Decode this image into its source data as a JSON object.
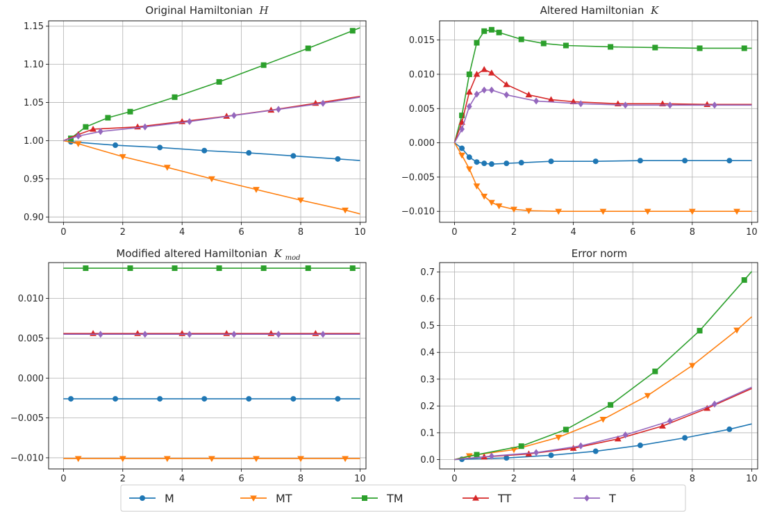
{
  "chart_data": [
    {
      "type": "line",
      "title": "Original Hamiltonian",
      "title_symbol": "H",
      "xlim": [
        -0.5,
        10.2
      ],
      "ylim": [
        0.893,
        1.157
      ],
      "xticks": [
        0,
        2,
        4,
        6,
        8,
        10
      ],
      "yticks": [
        0.9,
        0.95,
        1.0,
        1.05,
        1.1,
        1.15
      ],
      "ytick_labels": [
        "0.90",
        "0.95",
        "1.00",
        "1.05",
        "1.10",
        "1.15"
      ],
      "grid": true,
      "series": [
        {
          "name": "M",
          "x": [
            0,
            0.25,
            1.75,
            3.25,
            4.75,
            6.25,
            7.75,
            9.25,
            10
          ],
          "y": [
            1.0,
            0.9985,
            0.994,
            0.991,
            0.987,
            0.984,
            0.98,
            0.976,
            0.974
          ]
        },
        {
          "name": "MT",
          "x": [
            0,
            0.5,
            2,
            3.5,
            5,
            6.5,
            8,
            9.5,
            10
          ],
          "y": [
            1.0,
            0.996,
            0.979,
            0.965,
            0.95,
            0.936,
            0.922,
            0.909,
            0.904
          ]
        },
        {
          "name": "TM",
          "x": [
            0,
            0.25,
            0.75,
            1.5,
            2.25,
            3.75,
            5.25,
            6.75,
            8.25,
            9.75,
            10
          ],
          "y": [
            1.0,
            1.003,
            1.018,
            1.03,
            1.038,
            1.057,
            1.077,
            1.099,
            1.121,
            1.144,
            1.148
          ]
        },
        {
          "name": "TT",
          "x": [
            0,
            0.5,
            1,
            2.5,
            4,
            5.5,
            7,
            8.5,
            10
          ],
          "y": [
            1.0,
            1.008,
            1.015,
            1.018,
            1.025,
            1.032,
            1.04,
            1.049,
            1.058
          ]
        },
        {
          "name": "T",
          "x": [
            0,
            0.5,
            1.25,
            2.75,
            4.25,
            5.75,
            7.25,
            8.75,
            10
          ],
          "y": [
            1.0,
            1.006,
            1.012,
            1.018,
            1.025,
            1.033,
            1.041,
            1.049,
            1.057
          ]
        }
      ]
    },
    {
      "type": "line",
      "title": "Altered Hamiltonian",
      "title_symbol": "K",
      "xlim": [
        -0.5,
        10.2
      ],
      "ylim": [
        -0.0116,
        0.0178
      ],
      "xticks": [
        0,
        2,
        4,
        6,
        8,
        10
      ],
      "yticks": [
        -0.01,
        -0.005,
        0.0,
        0.005,
        0.01,
        0.015
      ],
      "ytick_labels": [
        "−0.010",
        "−0.005",
        "0.000",
        "0.005",
        "0.010",
        "0.015"
      ],
      "grid": true,
      "series": [
        {
          "name": "M",
          "x": [
            0,
            0.25,
            0.5,
            0.75,
            1,
            1.25,
            1.75,
            2.25,
            3.25,
            4.75,
            6.25,
            7.75,
            9.25,
            10
          ],
          "y": [
            0,
            -0.0008,
            -0.0021,
            -0.0028,
            -0.003,
            -0.0031,
            -0.003,
            -0.0029,
            -0.0027,
            -0.0027,
            -0.0026,
            -0.0026,
            -0.0026,
            -0.0026
          ]
        },
        {
          "name": "MT",
          "x": [
            0,
            0.25,
            0.5,
            0.75,
            1,
            1.25,
            1.5,
            2,
            2.5,
            3.5,
            5,
            6.5,
            8,
            9.5,
            10
          ],
          "y": [
            0,
            -0.0018,
            -0.0038,
            -0.0063,
            -0.0078,
            -0.0087,
            -0.0092,
            -0.0097,
            -0.0099,
            -0.01,
            -0.01,
            -0.01,
            -0.01,
            -0.01,
            -0.01
          ]
        },
        {
          "name": "TM",
          "x": [
            0,
            0.25,
            0.5,
            0.75,
            1,
            1.25,
            1.5,
            2.25,
            3,
            3.75,
            5.25,
            6.75,
            8.25,
            9.75,
            10
          ],
          "y": [
            0,
            0.004,
            0.01,
            0.0146,
            0.0163,
            0.0165,
            0.0161,
            0.0151,
            0.0145,
            0.0142,
            0.014,
            0.0139,
            0.0138,
            0.0138,
            0.0138
          ]
        },
        {
          "name": "TT",
          "x": [
            0,
            0.25,
            0.5,
            0.75,
            1,
            1.25,
            1.75,
            2.5,
            3.25,
            4,
            5.5,
            7,
            8.5,
            10
          ],
          "y": [
            0,
            0.003,
            0.0074,
            0.01,
            0.0107,
            0.0102,
            0.0085,
            0.007,
            0.0063,
            0.006,
            0.0057,
            0.0057,
            0.0056,
            0.0056
          ]
        },
        {
          "name": "T",
          "x": [
            0,
            0.25,
            0.5,
            0.75,
            1,
            1.25,
            1.75,
            2.75,
            4.25,
            5.75,
            7.25,
            8.75,
            10
          ],
          "y": [
            0,
            0.002,
            0.0053,
            0.0071,
            0.0077,
            0.0077,
            0.007,
            0.0061,
            0.0057,
            0.0055,
            0.0055,
            0.0055,
            0.0055
          ]
        }
      ]
    },
    {
      "type": "line",
      "title": "Modified altered Hamiltonian",
      "title_symbol": "K",
      "title_subscript": "mod",
      "xlim": [
        -0.5,
        10.2
      ],
      "ylim": [
        -0.0114,
        0.0145
      ],
      "xticks": [
        0,
        2,
        4,
        6,
        8,
        10
      ],
      "yticks": [
        -0.01,
        -0.005,
        0.0,
        0.005,
        0.01
      ],
      "ytick_labels": [
        "−0.010",
        "−0.005",
        "0.000",
        "0.005",
        "0.010"
      ],
      "grid": true,
      "series": [
        {
          "name": "M",
          "x": [
            0,
            0.25,
            1.75,
            3.25,
            4.75,
            6.25,
            7.75,
            9.25,
            10
          ],
          "y": [
            -0.0026,
            -0.0026,
            -0.0026,
            -0.0026,
            -0.0026,
            -0.0026,
            -0.0026,
            -0.0026,
            -0.0026
          ]
        },
        {
          "name": "MT",
          "x": [
            0,
            0.5,
            2,
            3.5,
            5,
            6.5,
            8,
            9.5,
            10
          ],
          "y": [
            -0.0101,
            -0.0101,
            -0.0101,
            -0.0101,
            -0.0101,
            -0.0101,
            -0.0101,
            -0.0101,
            -0.0101
          ]
        },
        {
          "name": "TM",
          "x": [
            0,
            0.75,
            2.25,
            3.75,
            5.25,
            6.75,
            8.25,
            9.75,
            10
          ],
          "y": [
            0.0138,
            0.0138,
            0.0138,
            0.0138,
            0.0138,
            0.0138,
            0.0138,
            0.0138,
            0.0138
          ]
        },
        {
          "name": "TT",
          "x": [
            0,
            1,
            2.5,
            4,
            5.5,
            7,
            8.5,
            10
          ],
          "y": [
            0.0056,
            0.0056,
            0.0056,
            0.0056,
            0.0056,
            0.0056,
            0.0056,
            0.0056
          ]
        },
        {
          "name": "T",
          "x": [
            0,
            1.25,
            2.75,
            4.25,
            5.75,
            7.25,
            8.75,
            10
          ],
          "y": [
            0.0055,
            0.0055,
            0.0055,
            0.0055,
            0.0055,
            0.0055,
            0.0055,
            0.0055
          ]
        }
      ]
    },
    {
      "type": "line",
      "title": "Error norm",
      "xlim": [
        -0.5,
        10.2
      ],
      "ylim": [
        -0.035,
        0.735
      ],
      "xticks": [
        0,
        2,
        4,
        6,
        8,
        10
      ],
      "yticks": [
        0.0,
        0.1,
        0.2,
        0.3,
        0.4,
        0.5,
        0.6,
        0.7
      ],
      "ytick_labels": [
        "0.0",
        "0.1",
        "0.2",
        "0.3",
        "0.4",
        "0.5",
        "0.6",
        "0.7"
      ],
      "grid": true,
      "series": [
        {
          "name": "M",
          "x": [
            0,
            0.25,
            1.75,
            3.25,
            4.75,
            6.25,
            7.75,
            9.25,
            10
          ],
          "y": [
            0,
            0.001,
            0.006,
            0.016,
            0.031,
            0.053,
            0.081,
            0.113,
            0.133
          ]
        },
        {
          "name": "MT",
          "x": [
            0,
            0.5,
            2,
            3.5,
            5,
            6.5,
            8,
            9.5,
            10
          ],
          "y": [
            0,
            0.014,
            0.037,
            0.083,
            0.15,
            0.239,
            0.351,
            0.483,
            0.533
          ]
        },
        {
          "name": "TM",
          "x": [
            0,
            0.75,
            2.25,
            3.75,
            5.25,
            6.75,
            8.25,
            9.75,
            10
          ],
          "y": [
            0,
            0.018,
            0.05,
            0.112,
            0.204,
            0.329,
            0.481,
            0.67,
            0.702
          ]
        },
        {
          "name": "TT",
          "x": [
            0,
            1,
            2.5,
            4,
            5.5,
            7,
            8.5,
            10
          ],
          "y": [
            0,
            0.01,
            0.021,
            0.042,
            0.077,
            0.125,
            0.191,
            0.265
          ]
        },
        {
          "name": "T",
          "x": [
            0,
            1.25,
            2.75,
            4.25,
            5.75,
            7.25,
            8.75,
            10
          ],
          "y": [
            0,
            0.013,
            0.026,
            0.051,
            0.092,
            0.144,
            0.207,
            0.27
          ]
        }
      ]
    }
  ],
  "legend": {
    "placement": "bottom-center",
    "entries": [
      {
        "name": "M",
        "color": "#1f77b4",
        "marker": "circle"
      },
      {
        "name": "MT",
        "color": "#ff7f0e",
        "marker": "triangle-down"
      },
      {
        "name": "TM",
        "color": "#2ca02c",
        "marker": "square"
      },
      {
        "name": "TT",
        "color": "#d62728",
        "marker": "triangle-up"
      },
      {
        "name": "T",
        "color": "#9467bd",
        "marker": "diamond"
      }
    ]
  }
}
